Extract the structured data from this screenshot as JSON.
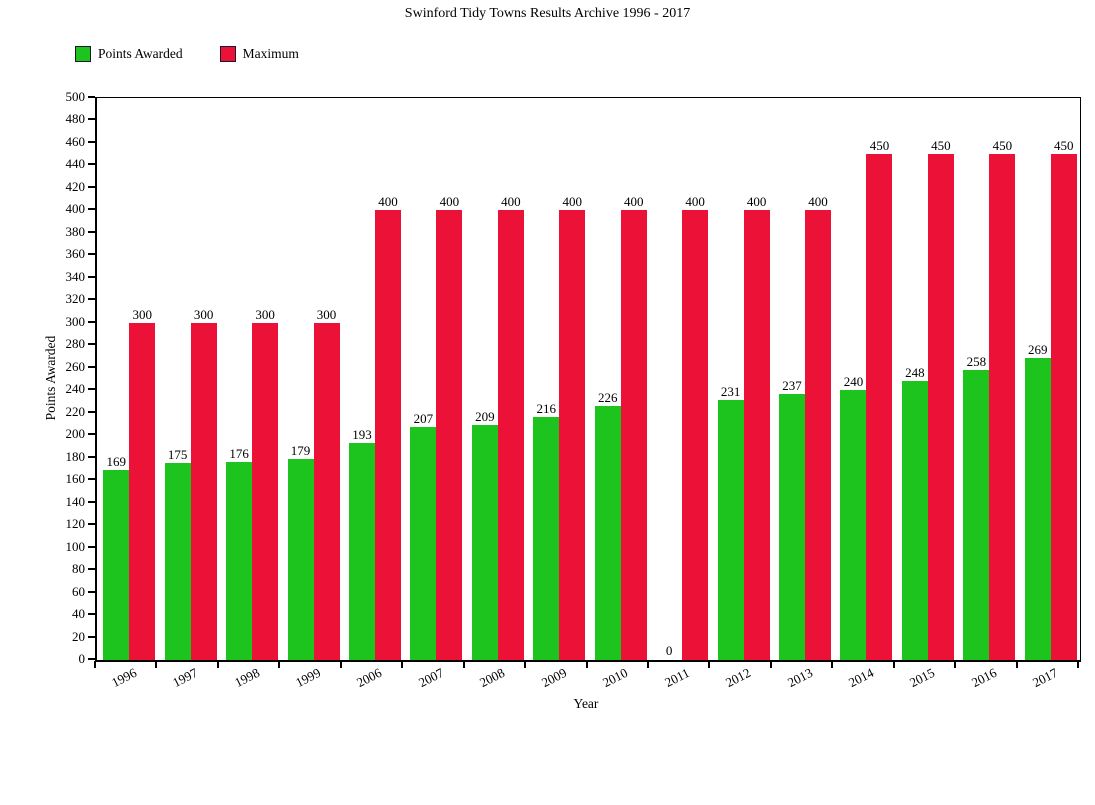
{
  "title": "Swinford Tidy Towns Results Archive 1996 - 2017",
  "legend": {
    "items": [
      {
        "label": "Points Awarded",
        "color": "#1ec41e"
      },
      {
        "label": "Maximum",
        "color": "#ec1237"
      }
    ]
  },
  "axes": {
    "x_title": "Year",
    "y_title": "Points Awarded"
  },
  "chart_data": {
    "type": "bar",
    "title": "Swinford Tidy Towns Results Archive 1996 - 2017",
    "categories": [
      "1996",
      "1997",
      "1998",
      "1999",
      "2006",
      "2007",
      "2008",
      "2009",
      "2010",
      "2011",
      "2012",
      "2013",
      "2014",
      "2015",
      "2016",
      "2017"
    ],
    "series": [
      {
        "name": "Points Awarded",
        "color": "#1ec41e",
        "values": [
          169,
          175,
          176,
          179,
          193,
          207,
          209,
          216,
          226,
          0,
          231,
          237,
          240,
          248,
          258,
          269
        ]
      },
      {
        "name": "Maximum",
        "color": "#ec1237",
        "values": [
          300,
          300,
          300,
          300,
          400,
          400,
          400,
          400,
          400,
          400,
          400,
          400,
          450,
          450,
          450,
          450
        ]
      }
    ],
    "xlabel": "Year",
    "ylabel": "Points Awarded",
    "ylim": [
      0,
      500
    ],
    "ytick_step": 20,
    "grid": false,
    "legend_position": "top-left",
    "bar_value_labels": true
  }
}
